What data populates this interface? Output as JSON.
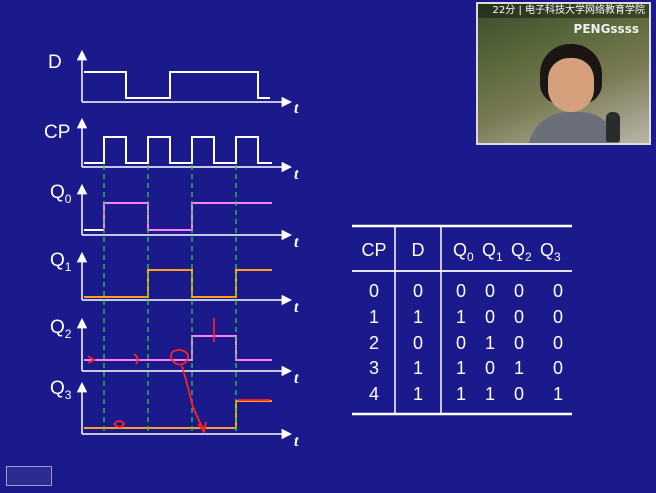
{
  "video": {
    "caption": "22分 | 电子科技大学网络教育学院",
    "watermark": "PENGssss"
  },
  "timing_diagram": {
    "signals": [
      {
        "name": "D",
        "sub": ""
      },
      {
        "name": "CP",
        "sub": ""
      },
      {
        "name": "Q",
        "sub": "0"
      },
      {
        "name": "Q",
        "sub": "1"
      },
      {
        "name": "Q",
        "sub": "2"
      },
      {
        "name": "Q",
        "sub": "3"
      }
    ],
    "time_label": "t",
    "colors": {
      "axis": "#ffffff",
      "input": "#ffffff",
      "q0": "#ff80ff",
      "q1": "#ffa020",
      "q2": "#ff80ff",
      "q3": "#ffa020",
      "guides": "#33cc33",
      "annotation": "#ff2020"
    }
  },
  "table": {
    "headers": [
      {
        "name": "CP",
        "sub": ""
      },
      {
        "name": "D",
        "sub": ""
      },
      {
        "name": "Q",
        "sub": "0"
      },
      {
        "name": "Q",
        "sub": "1"
      },
      {
        "name": "Q",
        "sub": "2"
      },
      {
        "name": "Q",
        "sub": "3"
      }
    ],
    "rows": [
      [
        "0",
        "0",
        "0",
        "0",
        "0",
        "0"
      ],
      [
        "1",
        "1",
        "1",
        "0",
        "0",
        "0"
      ],
      [
        "2",
        "0",
        "0",
        "1",
        "0",
        "0"
      ],
      [
        "3",
        "1",
        "1",
        "0",
        "1",
        "0"
      ],
      [
        "4",
        "1",
        "1",
        "1",
        "0",
        "1"
      ]
    ]
  }
}
